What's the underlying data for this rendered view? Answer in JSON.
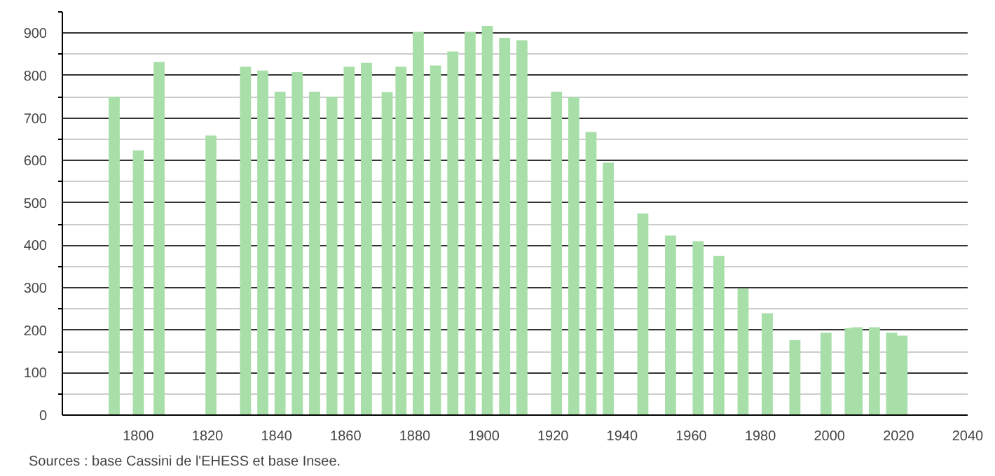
{
  "chart_data": {
    "type": "bar",
    "x": [
      1793,
      1800,
      1806,
      1821,
      1831,
      1836,
      1841,
      1846,
      1851,
      1856,
      1861,
      1866,
      1872,
      1876,
      1881,
      1886,
      1891,
      1896,
      1901,
      1906,
      1911,
      1921,
      1926,
      1931,
      1936,
      1946,
      1954,
      1962,
      1968,
      1975,
      1982,
      1990,
      1999,
      2006,
      2008,
      2013,
      2018,
      2021
    ],
    "values": [
      750,
      624,
      832,
      659,
      821,
      812,
      762,
      808,
      762,
      750,
      821,
      830,
      761,
      821,
      903,
      824,
      857,
      903,
      917,
      889,
      883,
      762,
      749,
      667,
      595,
      475,
      423,
      410,
      375,
      298,
      240,
      177,
      194,
      205,
      207,
      207,
      194,
      187
    ],
    "color": "#a8dfa8",
    "xlim": [
      1778,
      2040
    ],
    "xticks": [
      1800,
      1820,
      1840,
      1860,
      1880,
      1900,
      1920,
      1940,
      1960,
      1980,
      2000,
      2020,
      2040
    ],
    "ylim": [
      0,
      950
    ],
    "yticks": [
      0,
      100,
      200,
      300,
      400,
      500,
      600,
      700,
      800,
      900
    ],
    "grid": "y",
    "annotations": [
      "Sources : base Cassini de l'EHESS et base Insee."
    ]
  }
}
